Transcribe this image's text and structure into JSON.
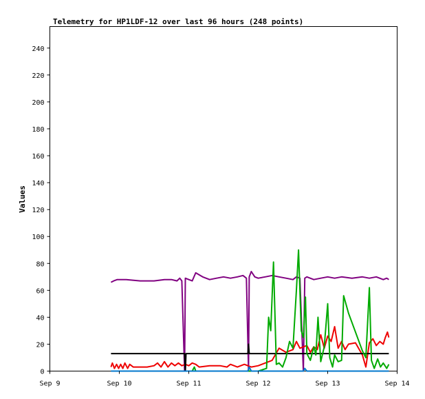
{
  "chart_data": {
    "type": "line",
    "title": "Telemetry for HP1LDF-12 over last 96 hours (248 points)",
    "xlabel": "",
    "ylabel": "Values",
    "ylim": [
      0,
      256
    ],
    "xlim": [
      0,
      5
    ],
    "x_ticks": [
      {
        "x": 0,
        "label": "Sep 9"
      },
      {
        "x": 1,
        "label": "Sep 10"
      },
      {
        "x": 2,
        "label": "Sep 11"
      },
      {
        "x": 3,
        "label": "Sep 12"
      },
      {
        "x": 4,
        "label": "Sep 13"
      },
      {
        "x": 5,
        "label": "Sep 14"
      }
    ],
    "y_ticks": [
      0,
      20,
      40,
      60,
      80,
      100,
      120,
      140,
      160,
      180,
      200,
      220,
      240
    ],
    "grid": false,
    "legend": "none",
    "series": [
      {
        "color": "#800080",
        "points": [
          [
            0.88,
            66
          ],
          [
            0.92,
            67
          ],
          [
            0.97,
            68
          ],
          [
            1.1,
            68
          ],
          [
            1.3,
            67
          ],
          [
            1.5,
            67
          ],
          [
            1.65,
            68
          ],
          [
            1.75,
            68
          ],
          [
            1.83,
            67
          ],
          [
            1.87,
            69
          ],
          [
            1.9,
            67
          ],
          [
            1.94,
            0
          ],
          [
            1.95,
            69
          ],
          [
            2.0,
            68
          ],
          [
            2.05,
            67
          ],
          [
            2.1,
            73
          ],
          [
            2.2,
            70
          ],
          [
            2.3,
            68
          ],
          [
            2.4,
            69
          ],
          [
            2.5,
            70
          ],
          [
            2.6,
            69
          ],
          [
            2.7,
            70
          ],
          [
            2.78,
            71
          ],
          [
            2.83,
            69
          ],
          [
            2.86,
            0
          ],
          [
            2.87,
            70
          ],
          [
            2.9,
            74
          ],
          [
            2.95,
            70
          ],
          [
            3.0,
            69
          ],
          [
            3.1,
            70
          ],
          [
            3.2,
            71
          ],
          [
            3.3,
            70
          ],
          [
            3.4,
            69
          ],
          [
            3.5,
            68
          ],
          [
            3.55,
            70
          ],
          [
            3.6,
            69
          ],
          [
            3.65,
            0
          ],
          [
            3.67,
            69
          ],
          [
            3.7,
            70
          ],
          [
            3.8,
            68
          ],
          [
            3.9,
            69
          ],
          [
            4.0,
            70
          ],
          [
            4.1,
            69
          ],
          [
            4.2,
            70
          ],
          [
            4.35,
            69
          ],
          [
            4.5,
            70
          ],
          [
            4.6,
            69
          ],
          [
            4.7,
            70
          ],
          [
            4.8,
            68
          ],
          [
            4.85,
            69
          ],
          [
            4.88,
            68
          ]
        ]
      },
      {
        "color": "#ee0000",
        "points": [
          [
            0.88,
            3
          ],
          [
            0.9,
            6
          ],
          [
            0.93,
            2
          ],
          [
            0.96,
            5
          ],
          [
            0.99,
            2
          ],
          [
            1.02,
            5
          ],
          [
            1.05,
            2
          ],
          [
            1.08,
            6
          ],
          [
            1.12,
            2
          ],
          [
            1.15,
            5
          ],
          [
            1.2,
            3
          ],
          [
            1.4,
            3
          ],
          [
            1.5,
            4
          ],
          [
            1.55,
            6
          ],
          [
            1.6,
            3
          ],
          [
            1.65,
            7
          ],
          [
            1.7,
            3
          ],
          [
            1.75,
            6
          ],
          [
            1.8,
            4
          ],
          [
            1.85,
            6
          ],
          [
            1.9,
            4
          ],
          [
            1.95,
            5
          ],
          [
            2.0,
            4
          ],
          [
            2.05,
            6
          ],
          [
            2.1,
            5
          ],
          [
            2.15,
            3
          ],
          [
            2.3,
            4
          ],
          [
            2.45,
            4
          ],
          [
            2.55,
            3
          ],
          [
            2.6,
            5
          ],
          [
            2.7,
            3
          ],
          [
            2.8,
            5
          ],
          [
            2.9,
            3
          ],
          [
            3.0,
            4
          ],
          [
            3.1,
            6
          ],
          [
            3.2,
            8
          ],
          [
            3.3,
            17
          ],
          [
            3.4,
            14
          ],
          [
            3.5,
            16
          ],
          [
            3.55,
            22
          ],
          [
            3.6,
            17
          ],
          [
            3.7,
            19
          ],
          [
            3.75,
            14
          ],
          [
            3.8,
            18
          ],
          [
            3.85,
            16
          ],
          [
            3.9,
            27
          ],
          [
            3.95,
            17
          ],
          [
            4.0,
            26
          ],
          [
            4.05,
            22
          ],
          [
            4.1,
            33
          ],
          [
            4.15,
            17
          ],
          [
            4.2,
            22
          ],
          [
            4.25,
            16
          ],
          [
            4.3,
            20
          ],
          [
            4.4,
            21
          ],
          [
            4.5,
            12
          ],
          [
            4.55,
            3
          ],
          [
            4.6,
            21
          ],
          [
            4.65,
            24
          ],
          [
            4.7,
            19
          ],
          [
            4.75,
            22
          ],
          [
            4.8,
            20
          ],
          [
            4.83,
            25
          ],
          [
            4.86,
            29
          ],
          [
            4.88,
            25
          ]
        ]
      },
      {
        "color": "#000000",
        "points": [
          [
            0.88,
            13
          ],
          [
            1.5,
            13
          ],
          [
            1.94,
            13
          ],
          [
            1.95,
            0
          ],
          [
            1.96,
            13
          ],
          [
            2.85,
            13
          ],
          [
            2.86,
            20
          ],
          [
            2.87,
            13
          ],
          [
            3.5,
            13
          ],
          [
            4.88,
            13
          ]
        ]
      },
      {
        "color": "#00aa00",
        "points": [
          [
            1.95,
            0
          ],
          [
            2.05,
            0
          ],
          [
            2.08,
            3
          ],
          [
            2.1,
            0
          ],
          [
            2.85,
            0
          ],
          [
            3.0,
            0
          ],
          [
            3.12,
            2
          ],
          [
            3.15,
            40
          ],
          [
            3.18,
            30
          ],
          [
            3.22,
            81
          ],
          [
            3.26,
            5
          ],
          [
            3.3,
            6
          ],
          [
            3.35,
            3
          ],
          [
            3.4,
            10
          ],
          [
            3.45,
            22
          ],
          [
            3.5,
            17
          ],
          [
            3.55,
            60
          ],
          [
            3.58,
            90
          ],
          [
            3.62,
            30
          ],
          [
            3.65,
            25
          ],
          [
            3.68,
            55
          ],
          [
            3.7,
            13
          ],
          [
            3.75,
            8
          ],
          [
            3.8,
            18
          ],
          [
            3.83,
            12
          ],
          [
            3.86,
            40
          ],
          [
            3.9,
            7
          ],
          [
            3.95,
            18
          ],
          [
            4.0,
            50
          ],
          [
            4.03,
            10
          ],
          [
            4.07,
            3
          ],
          [
            4.1,
            12
          ],
          [
            4.15,
            7
          ],
          [
            4.2,
            8
          ],
          [
            4.23,
            56
          ],
          [
            4.3,
            43
          ],
          [
            4.5,
            15
          ],
          [
            4.55,
            10
          ],
          [
            4.6,
            62
          ],
          [
            4.63,
            8
          ],
          [
            4.67,
            2
          ],
          [
            4.72,
            9
          ],
          [
            4.76,
            3
          ],
          [
            4.8,
            6
          ],
          [
            4.85,
            2
          ],
          [
            4.88,
            5
          ]
        ]
      },
      {
        "color": "#0077cc",
        "points": [
          [
            0.88,
            0
          ],
          [
            2.85,
            0
          ],
          [
            2.87,
            3
          ],
          [
            2.9,
            0
          ],
          [
            3.5,
            0
          ],
          [
            3.65,
            0
          ],
          [
            3.67,
            2
          ],
          [
            3.7,
            0
          ],
          [
            4.88,
            0
          ]
        ]
      }
    ]
  }
}
